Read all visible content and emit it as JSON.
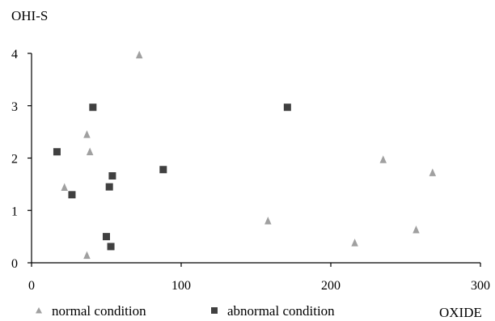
{
  "chart_data": {
    "type": "scatter",
    "ylabel": "OHI-S",
    "xlabel": "OXIDE",
    "xlim": [
      0,
      300
    ],
    "ylim": [
      0,
      4
    ],
    "xticks": [
      0,
      100,
      200,
      300
    ],
    "yticks": [
      0,
      1,
      2,
      3,
      4
    ],
    "grid": false,
    "legend_position": "bottom",
    "series": [
      {
        "name": "normal condition",
        "marker": "triangle",
        "color": "#a0a0a0",
        "points": [
          {
            "x": 72,
            "y": 3.97
          },
          {
            "x": 37,
            "y": 2.45
          },
          {
            "x": 39,
            "y": 2.12
          },
          {
            "x": 22,
            "y": 1.44
          },
          {
            "x": 37,
            "y": 0.14
          },
          {
            "x": 158,
            "y": 0.8
          },
          {
            "x": 216,
            "y": 0.38
          },
          {
            "x": 235,
            "y": 1.97
          },
          {
            "x": 257,
            "y": 0.63
          },
          {
            "x": 268,
            "y": 1.72
          }
        ]
      },
      {
        "name": "abnormal condition",
        "marker": "square",
        "color": "#404040",
        "points": [
          {
            "x": 41,
            "y": 2.97
          },
          {
            "x": 17,
            "y": 2.12
          },
          {
            "x": 27,
            "y": 1.3
          },
          {
            "x": 54,
            "y": 1.66
          },
          {
            "x": 52,
            "y": 1.45
          },
          {
            "x": 88,
            "y": 1.78
          },
          {
            "x": 50,
            "y": 0.5
          },
          {
            "x": 53,
            "y": 0.31
          },
          {
            "x": 171,
            "y": 2.97
          }
        ]
      }
    ]
  }
}
